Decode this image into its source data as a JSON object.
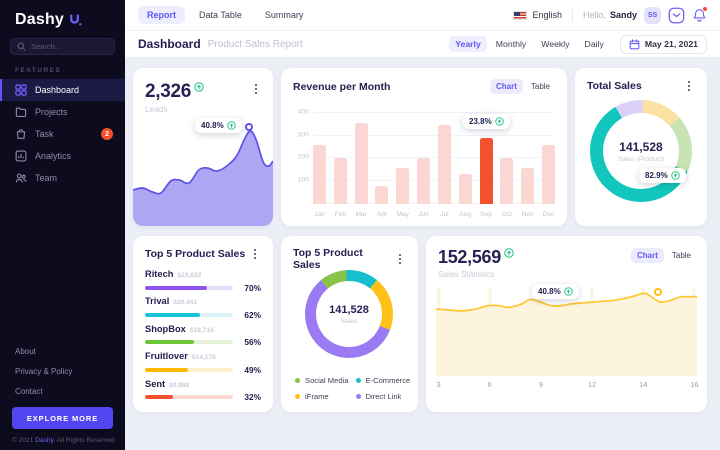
{
  "sidebar": {
    "logo": "Dashy",
    "search_placeholder": "Search...",
    "section_label": "FEATURES",
    "items": [
      {
        "label": "Dashboard",
        "active": true
      },
      {
        "label": "Projects"
      },
      {
        "label": "Task",
        "badge": "2"
      },
      {
        "label": "Analytics"
      },
      {
        "label": "Team"
      }
    ],
    "footer_links": [
      "About",
      "Privacy & Policy",
      "Contact"
    ],
    "explore_button": "EXPLORE MORE",
    "copyright_prefix": "© 2021 ",
    "copyright_brand": "Dashy",
    "copyright_suffix": ". All Rights Reserved"
  },
  "topbar": {
    "tabs": [
      "Report",
      "Data Table",
      "Summary"
    ],
    "language": "English",
    "greeting": "Hello,",
    "username": "Sandy",
    "avatar_initials": "SS"
  },
  "header": {
    "title": "Dashboard",
    "subtitle": "Product Sales Report",
    "filters": [
      "Yearly",
      "Monthly",
      "Weekly",
      "Daily"
    ],
    "date": "May 21, 2021"
  },
  "cards": {
    "leads": {
      "value": "2,326",
      "label": "Leads"
    },
    "revenue": {
      "title": "Revenue per Month",
      "toggle": [
        "Chart",
        "Table"
      ]
    },
    "total_sales": {
      "title": "Total Sales"
    },
    "top5_list": {
      "title": "Top 5 Product Sales"
    },
    "top5_donut": {
      "title": "Top 5 Product Sales"
    },
    "sales_stats": {
      "value": "152,569",
      "label": "Sales Statistics",
      "toggle": [
        "Chart",
        "Table"
      ]
    }
  },
  "colors": {
    "accent": "#5F57F5",
    "success": "#2BC48A",
    "alert": "#F4502C"
  },
  "chart_data": [
    {
      "id": "leads-spark",
      "type": "area",
      "line_color": "#5F51E8",
      "fill_color": "#A49CF1",
      "points": [
        [
          0,
          36
        ],
        [
          7,
          38
        ],
        [
          14,
          34
        ],
        [
          20,
          33
        ],
        [
          27,
          45
        ],
        [
          33,
          46
        ],
        [
          40,
          43
        ],
        [
          47,
          56
        ],
        [
          53,
          58
        ],
        [
          60,
          55
        ],
        [
          67,
          60
        ],
        [
          74,
          70
        ],
        [
          80,
          88
        ],
        [
          84,
          95
        ],
        [
          88,
          86
        ],
        [
          93,
          64
        ],
        [
          97,
          60
        ],
        [
          100,
          65
        ]
      ],
      "tooltip": "40.8%"
    },
    {
      "id": "revenue-per-month",
      "type": "bar",
      "title": "Revenue per Month",
      "categories": [
        "Jan",
        "Feb",
        "Mar",
        "Apr",
        "May",
        "Jun",
        "Jul",
        "Aug",
        "Sep",
        "Oct",
        "Nov",
        "Dec"
      ],
      "values": [
        260,
        200,
        355,
        80,
        160,
        200,
        345,
        130,
        290,
        200,
        160,
        260
      ],
      "highlight_index": 8,
      "tooltip": "23.8%",
      "bar_color": "#FAD7D2",
      "highlight_color": "#F4512D",
      "yticks": [
        100,
        200,
        300,
        400
      ],
      "ylim": [
        0,
        430
      ],
      "grid": true,
      "legend": false
    },
    {
      "id": "total-sales-donut",
      "type": "donut",
      "center_value": "141,528",
      "center_label": "Sales (Product)",
      "tooltip": "82.9%",
      "start_angle": -30,
      "segments": [
        {
          "label": "",
          "value": 9,
          "color": "#DCCFF8"
        },
        {
          "label": "",
          "value": 13,
          "color": "#FBE2A4"
        },
        {
          "label": "",
          "value": 18,
          "color": "#C9E4B4"
        },
        {
          "label": "",
          "value": 60,
          "color": "#12C6BD"
        }
      ]
    },
    {
      "id": "top5-products",
      "type": "hbar",
      "items": [
        {
          "name": "Ritech",
          "amount": "$23,632",
          "pct": 70,
          "color": "#8C52F5",
          "track": "#EADDFC"
        },
        {
          "name": "Trival",
          "amount": "$20,441",
          "pct": 62,
          "color": "#16C3D9",
          "track": "#D9F5F8"
        },
        {
          "name": "ShopBox",
          "amount": "$18,715",
          "pct": 56,
          "color": "#6DC435",
          "track": "#E4F3D8"
        },
        {
          "name": "Fruitlover",
          "amount": "$14,178",
          "pct": 49,
          "color": "#FFB902",
          "track": "#FCEFCB"
        },
        {
          "name": "Sent",
          "amount": "$9,988",
          "pct": 32,
          "color": "#F4512D",
          "track": "#FCDAD3"
        }
      ]
    },
    {
      "id": "top5-donut",
      "type": "donut",
      "center_value": "141,528",
      "center_label": "Sales",
      "start_angle": -40,
      "segments": [
        {
          "label": "Social Media",
          "value": 10,
          "color": "#8BC34A"
        },
        {
          "label": "E-Commerce",
          "value": 12,
          "color": "#17BECF"
        },
        {
          "label": "iFrame",
          "value": 20,
          "color": "#FFC117"
        },
        {
          "label": "Direct Link",
          "value": 58,
          "color": "#9B7BF4"
        }
      ],
      "legend_position": "bottom"
    },
    {
      "id": "sales-statistics",
      "type": "area",
      "line_color": "#FFC62E",
      "fill_color": "#FCF3D9",
      "points": [
        [
          0,
          76
        ],
        [
          5,
          75
        ],
        [
          10,
          74
        ],
        [
          15,
          76
        ],
        [
          20,
          80
        ],
        [
          24,
          80
        ],
        [
          28,
          78
        ],
        [
          33,
          82
        ],
        [
          36,
          87
        ],
        [
          40,
          84
        ],
        [
          44,
          80
        ],
        [
          48,
          80
        ],
        [
          52,
          82
        ],
        [
          56,
          83
        ],
        [
          60,
          84
        ],
        [
          64,
          85
        ],
        [
          68,
          86
        ],
        [
          72,
          88
        ],
        [
          76,
          91
        ],
        [
          80,
          94
        ],
        [
          83,
          89
        ],
        [
          86,
          84
        ],
        [
          90,
          86
        ],
        [
          94,
          90
        ],
        [
          100,
          90
        ]
      ],
      "tooltip": "40.8%",
      "xticks": [
        "3",
        "6",
        "9",
        "12",
        "14",
        "16"
      ],
      "grid": true
    }
  ]
}
